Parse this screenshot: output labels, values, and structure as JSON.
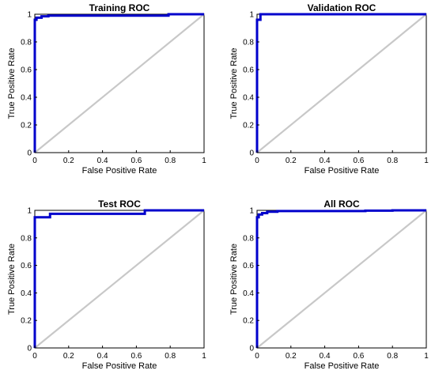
{
  "chart_data": [
    {
      "type": "line",
      "title": "Training ROC",
      "xlabel": "False Positive Rate",
      "ylabel": "True Positive Rate",
      "xlim": [
        0,
        1
      ],
      "ylim": [
        0,
        1
      ],
      "xticks": [
        "0",
        "0.2",
        "0.4",
        "0.6",
        "0.8",
        "1"
      ],
      "yticks": [
        "0",
        "0.2",
        "0.4",
        "0.6",
        "0.8",
        "1"
      ],
      "grid": false,
      "legend": "none",
      "series": [
        {
          "role": "roc-curve",
          "color": "#0000cc",
          "x": [
            0,
            0,
            0.01,
            0.01,
            0.04,
            0.04,
            0.08,
            0.08,
            0.79,
            0.79,
            1
          ],
          "y": [
            0,
            0.96,
            0.96,
            0.975,
            0.975,
            0.985,
            0.985,
            0.99,
            0.99,
            1,
            1
          ]
        },
        {
          "role": "reference-diagonal",
          "color": "#c8c8c8",
          "x": [
            0,
            1
          ],
          "y": [
            0,
            1
          ]
        }
      ]
    },
    {
      "type": "line",
      "title": "Validation ROC",
      "xlabel": "False Positive Rate",
      "ylabel": "True Positive Rate",
      "xlim": [
        0,
        1
      ],
      "ylim": [
        0,
        1
      ],
      "xticks": [
        "0",
        "0.2",
        "0.4",
        "0.6",
        "0.8",
        "1"
      ],
      "yticks": [
        "0",
        "0.2",
        "0.4",
        "0.6",
        "0.8",
        "1"
      ],
      "grid": false,
      "legend": "none",
      "series": [
        {
          "role": "roc-curve",
          "color": "#0000cc",
          "x": [
            0,
            0,
            0.02,
            0.02,
            1
          ],
          "y": [
            0,
            0.96,
            0.96,
            1,
            1
          ]
        },
        {
          "role": "reference-diagonal",
          "color": "#c8c8c8",
          "x": [
            0,
            1
          ],
          "y": [
            0,
            1
          ]
        }
      ]
    },
    {
      "type": "line",
      "title": "Test ROC",
      "xlabel": "False Positive Rate",
      "ylabel": "True Positive Rate",
      "xlim": [
        0,
        1
      ],
      "ylim": [
        0,
        1
      ],
      "xticks": [
        "0",
        "0.2",
        "0.4",
        "0.6",
        "0.8",
        "1"
      ],
      "yticks": [
        "0",
        "0.2",
        "0.4",
        "0.6",
        "0.8",
        "1"
      ],
      "grid": false,
      "legend": "none",
      "series": [
        {
          "role": "roc-curve",
          "color": "#0000cc",
          "x": [
            0,
            0,
            0.09,
            0.09,
            0.65,
            0.65,
            1
          ],
          "y": [
            0,
            0.95,
            0.95,
            0.975,
            0.975,
            1,
            1
          ]
        },
        {
          "role": "reference-diagonal",
          "color": "#c8c8c8",
          "x": [
            0,
            1
          ],
          "y": [
            0,
            1
          ]
        }
      ]
    },
    {
      "type": "line",
      "title": "All ROC",
      "xlabel": "False Positive Rate",
      "ylabel": "True Positive Rate",
      "xlim": [
        0,
        1
      ],
      "ylim": [
        0,
        1
      ],
      "xticks": [
        "0",
        "0.2",
        "0.4",
        "0.6",
        "0.8",
        "1"
      ],
      "yticks": [
        "0",
        "0.2",
        "0.4",
        "0.6",
        "0.8",
        "1"
      ],
      "grid": false,
      "legend": "none",
      "series": [
        {
          "role": "roc-curve",
          "color": "#0000cc",
          "x": [
            0,
            0,
            0.01,
            0.01,
            0.03,
            0.03,
            0.06,
            0.06,
            0.12,
            0.12,
            0.64,
            0.64,
            0.8,
            0.8,
            1
          ],
          "y": [
            0,
            0.95,
            0.95,
            0.97,
            0.97,
            0.98,
            0.98,
            0.99,
            0.99,
            0.995,
            0.995,
            0.998,
            0.998,
            1,
            1
          ]
        },
        {
          "role": "reference-diagonal",
          "color": "#c8c8c8",
          "x": [
            0,
            1
          ],
          "y": [
            0,
            1
          ]
        }
      ]
    }
  ]
}
